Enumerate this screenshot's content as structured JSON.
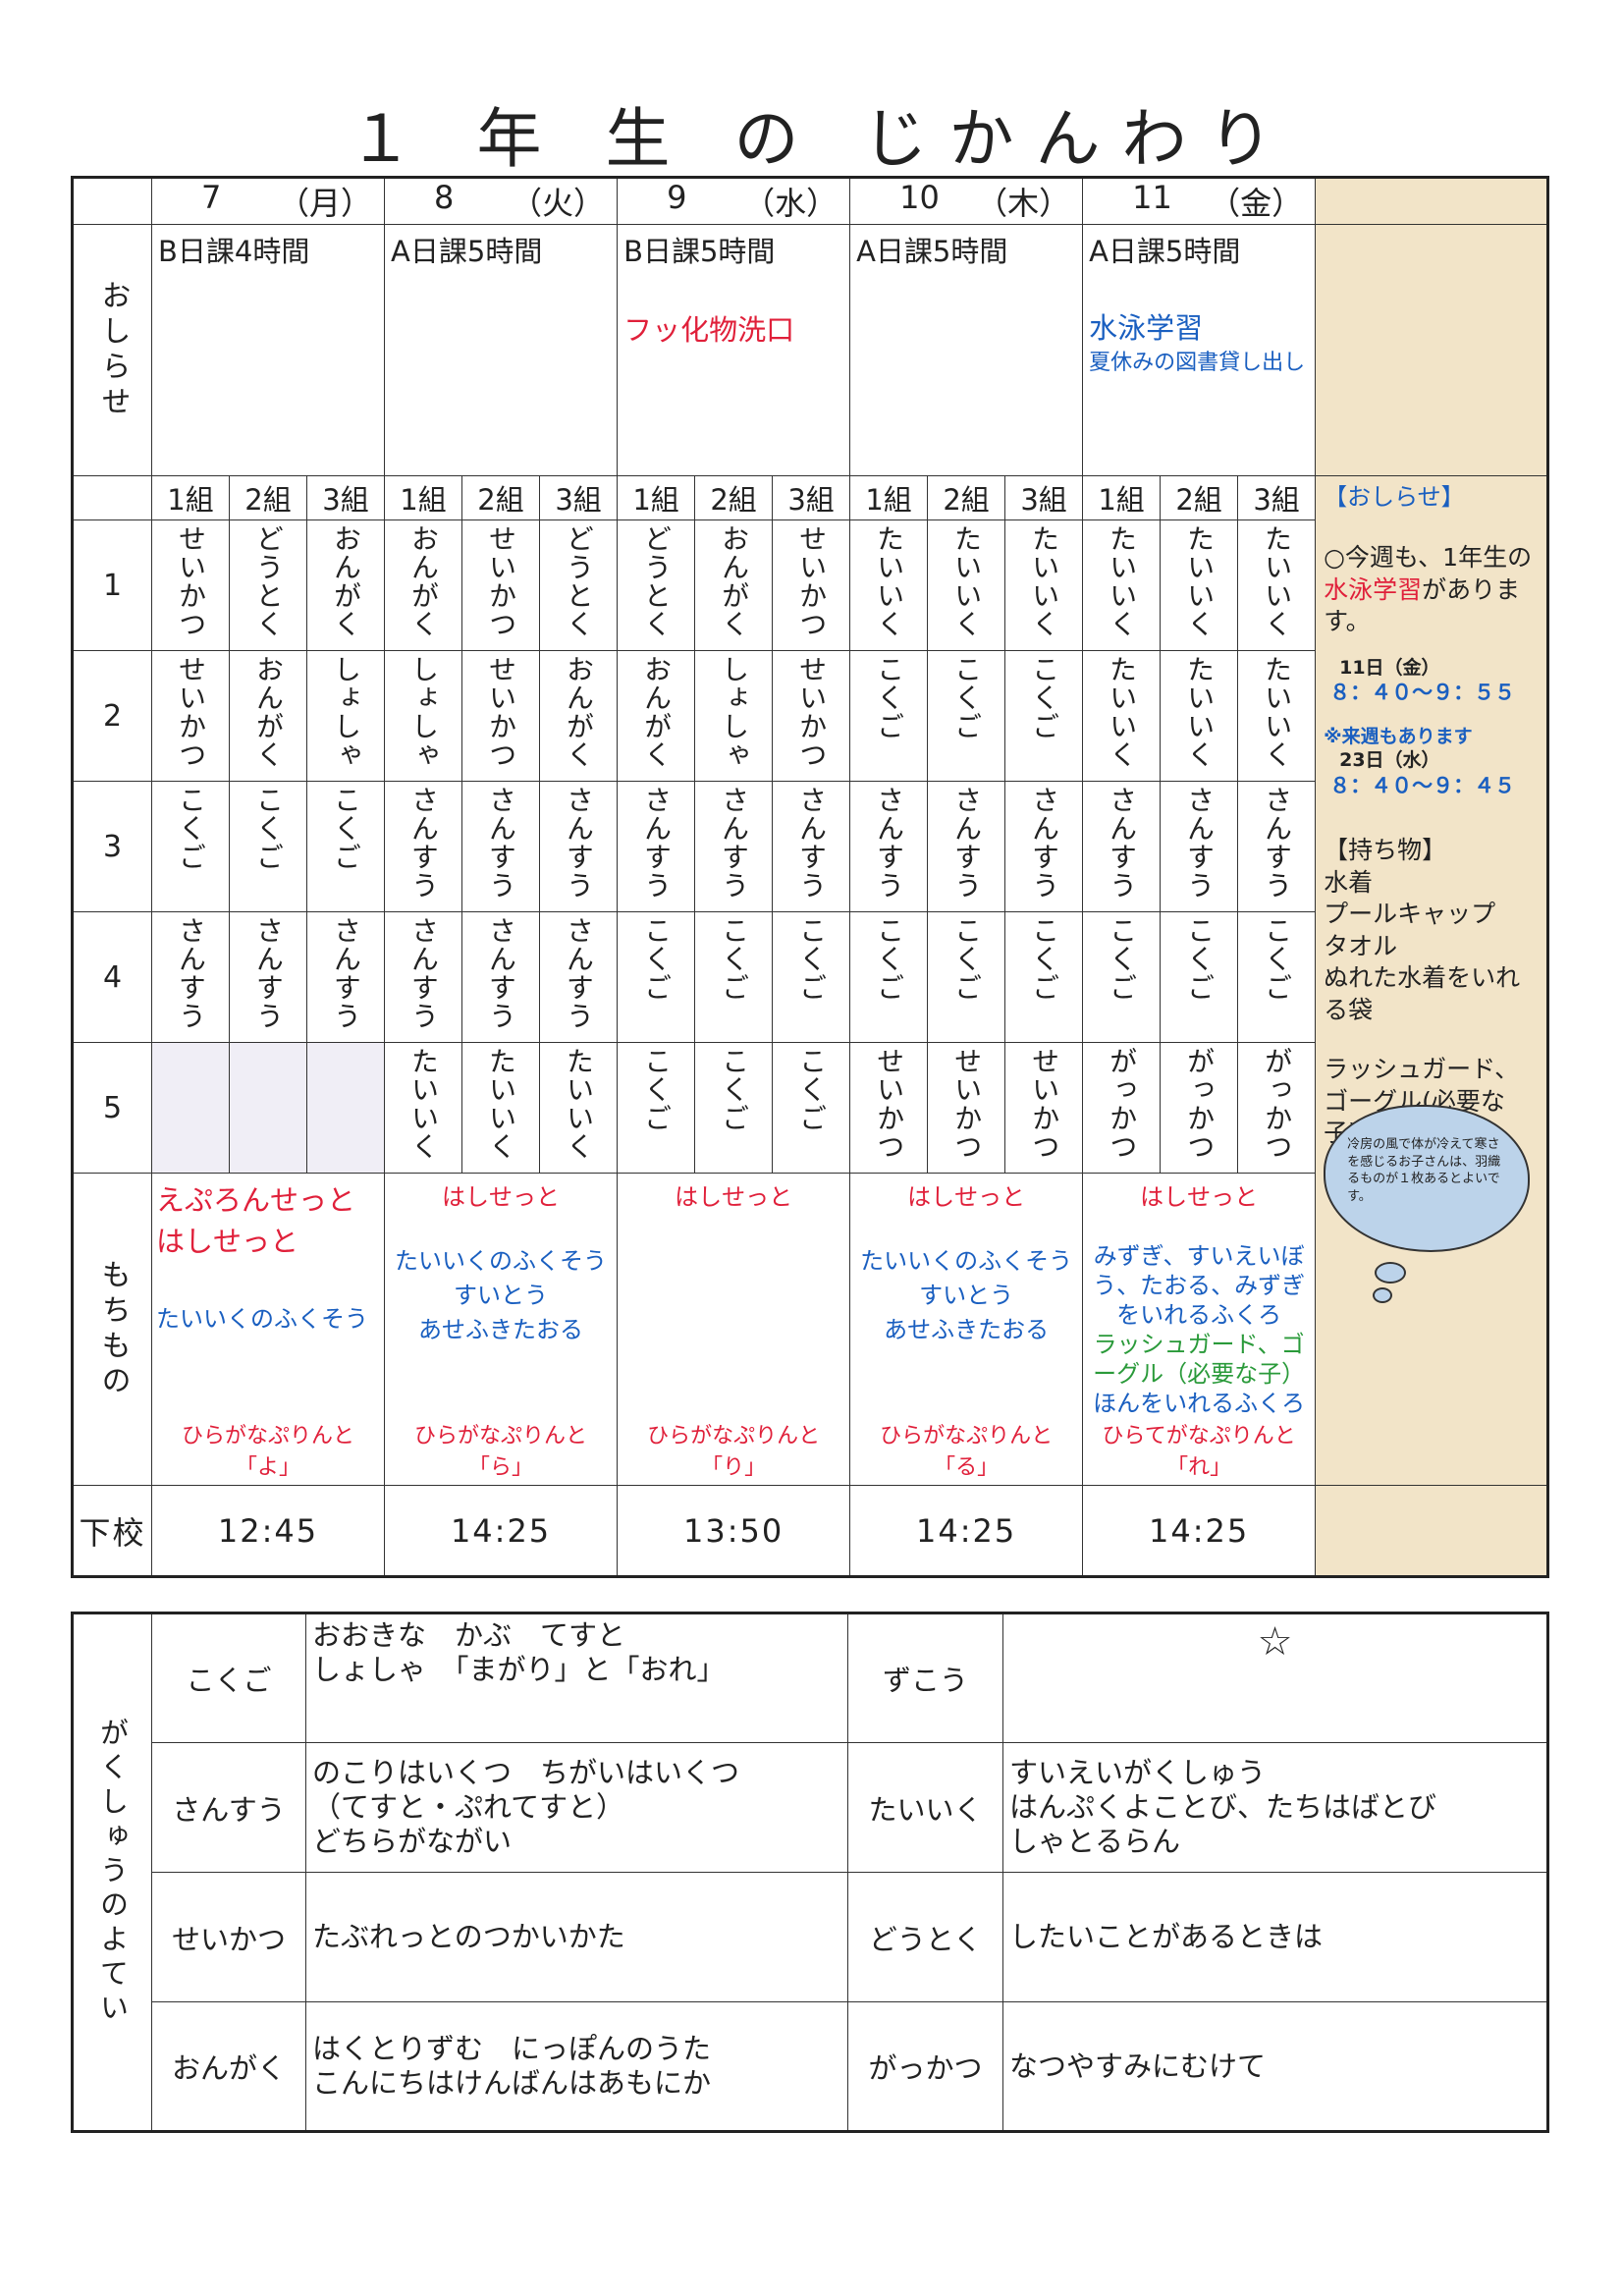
{
  "title": "１ 年 生 の じかんわり",
  "days": [
    {
      "date": "7",
      "dow": "（月）",
      "notice": [
        {
          "text": "B日課4時間",
          "color": "black"
        }
      ],
      "periods": [
        [
          "せいかつ",
          "どうとく",
          "おんがく"
        ],
        [
          "せいかつ",
          "おんがく",
          "しょしゃ"
        ],
        [
          "こくご",
          "こくご",
          "こくご"
        ],
        [
          "さんすう",
          "さんすう",
          "さんすう"
        ],
        [
          "",
          "",
          ""
        ]
      ],
      "mochi_top": [
        {
          "text": "えぷろんせっと",
          "color": "red"
        },
        {
          "text": "はしせっと",
          "color": "red"
        }
      ],
      "mochi_mid": [
        {
          "text": "たいいくのふくそう",
          "color": "blue"
        }
      ],
      "mochi_bottom": "ひらがなぷりんと「よ」",
      "gekou": "12:45"
    },
    {
      "date": "8",
      "dow": "（火）",
      "notice": [
        {
          "text": "A日課5時間",
          "color": "black"
        }
      ],
      "periods": [
        [
          "おんがく",
          "せいかつ",
          "どうとく"
        ],
        [
          "しょしゃ",
          "せいかつ",
          "おんがく"
        ],
        [
          "さんすう",
          "さんすう",
          "さんすう"
        ],
        [
          "さんすう",
          "さんすう",
          "さんすう"
        ],
        [
          "たいいく",
          "たいいく",
          "たいいく"
        ]
      ],
      "mochi_top": [
        {
          "text": "はしせっと",
          "color": "red"
        }
      ],
      "mochi_mid": [
        {
          "text": "たいいくのふくそう",
          "color": "blue"
        },
        {
          "text": "すいとう",
          "color": "blue"
        },
        {
          "text": "あせふきたおる",
          "color": "blue"
        }
      ],
      "mochi_bottom": "ひらがなぷりんと「ら」",
      "gekou": "14:25"
    },
    {
      "date": "9",
      "dow": "（水）",
      "notice": [
        {
          "text": "B日課5時間",
          "color": "black"
        },
        {
          "text": "フッ化物洗口",
          "color": "red"
        }
      ],
      "periods": [
        [
          "どうとく",
          "おんがく",
          "せいかつ"
        ],
        [
          "おんがく",
          "しょしゃ",
          "せいかつ"
        ],
        [
          "さんすう",
          "さんすう",
          "さんすう"
        ],
        [
          "こくご",
          "こくご",
          "こくご"
        ],
        [
          "こくご",
          "こくご",
          "こくご"
        ]
      ],
      "mochi_top": [
        {
          "text": "はしせっと",
          "color": "red"
        }
      ],
      "mochi_mid": [],
      "mochi_bottom": "ひらがなぷりんと「り」",
      "gekou": "13:50"
    },
    {
      "date": "10",
      "dow": "（木）",
      "notice": [
        {
          "text": "A日課5時間",
          "color": "black"
        }
      ],
      "periods": [
        [
          "たいいく",
          "たいいく",
          "たいいく"
        ],
        [
          "こくご",
          "こくご",
          "こくご"
        ],
        [
          "さんすう",
          "さんすう",
          "さんすう"
        ],
        [
          "こくご",
          "こくご",
          "こくご"
        ],
        [
          "せいかつ",
          "せいかつ",
          "せいかつ"
        ]
      ],
      "mochi_top": [
        {
          "text": "はしせっと",
          "color": "red"
        }
      ],
      "mochi_mid": [
        {
          "text": "たいいくのふくそう",
          "color": "blue"
        },
        {
          "text": "すいとう",
          "color": "blue"
        },
        {
          "text": "あせふきたおる",
          "color": "blue"
        }
      ],
      "mochi_bottom": "ひらがなぷりんと「る」",
      "gekou": "14:25"
    },
    {
      "date": "11",
      "dow": "（金）",
      "notice": [
        {
          "text": "A日課5時間",
          "color": "black"
        },
        {
          "text": "水泳学習",
          "color": "blue"
        },
        {
          "text": "夏休みの図書貸し出し",
          "color": "blue"
        }
      ],
      "periods": [
        [
          "たいいく",
          "たいいく",
          "たいいく"
        ],
        [
          "たいいく",
          "たいいく",
          "たいいく"
        ],
        [
          "さんすう",
          "さんすう",
          "さんすう"
        ],
        [
          "こくご",
          "こくご",
          "こくご"
        ],
        [
          "がっかつ",
          "がっかつ",
          "がっかつ"
        ]
      ],
      "mochi_top": [
        {
          "text": "はしせっと",
          "color": "red"
        }
      ],
      "mochi_mid": [
        {
          "text": "みずぎ、すいえいぼう、たおる、みずぎをいれるふくろ",
          "color": "blue"
        },
        {
          "text": "ラッシュガード、ゴーグル（必要な子）",
          "color": "green"
        },
        {
          "text": "ほんをいれるふくろ",
          "color": "blue"
        }
      ],
      "mochi_bottom": "ひらてがなぷりんと「れ」",
      "gekou": "14:25"
    }
  ],
  "labels": {
    "oshirase": "おしらせ",
    "mochimono": "もちもの",
    "gekou": "下校",
    "classes": [
      "1組",
      "2組",
      "3組"
    ],
    "periods": [
      "1",
      "2",
      "3",
      "4",
      "5"
    ]
  },
  "notes": {
    "heading": "【おしらせ】",
    "line1": "○今週も、1年生の",
    "highlight": "水泳学習",
    "line2": "があります。",
    "date1": "11日（金）",
    "time1": "８：４０～９：５５",
    "next": "※来週もあります",
    "date2": "23日（水）",
    "time2": "８：４０～９：４５",
    "items_heading": "【持ち物】",
    "items": [
      "水着",
      "プールキャップ",
      "タオル",
      "ぬれた水着をいれる袋"
    ],
    "extra": "ラッシュガード、ゴーグル(必要な子)",
    "cloud": "冷房の風で体が冷えて寒さを感じるお子さんは、羽織るものが１枚あるとよいです。"
  },
  "plan": {
    "label": "がくしゅうのよてい",
    "rows": [
      [
        {
          "subject": "こくご",
          "content": [
            "おおきな　かぶ　てすと",
            "しょしゃ　「まがり」と「おれ」"
          ]
        },
        {
          "subject": "ずこう",
          "content": [
            "☆"
          ]
        }
      ],
      [
        {
          "subject": "さんすう",
          "content": [
            "のこりはいくつ　ちがいはいくつ",
            "（てすと・ぷれてすと）",
            "どちらがながい"
          ]
        },
        {
          "subject": "たいいく",
          "content": [
            "すいえいがくしゅう",
            "はんぷくよことび、たちはばとび",
            "しゃとるらん"
          ]
        }
      ],
      [
        {
          "subject": "せいかつ",
          "content": [
            "たぶれっとのつかいかた"
          ]
        },
        {
          "subject": "どうとく",
          "content": [
            "したいことがあるときは"
          ]
        }
      ],
      [
        {
          "subject": "おんがく",
          "content": [
            "はくとりずむ　にっぽんのうた",
            "こんにちはけんばんはあもにか"
          ]
        },
        {
          "subject": "がっかつ",
          "content": [
            "なつやすみにむけて"
          ]
        }
      ]
    ]
  },
  "colors": {
    "red": "#e0203a",
    "blue": "#1a5fc0",
    "green": "#2a9a3a",
    "beige": "#f2e4c8",
    "cloud": "#bcd3ea"
  }
}
